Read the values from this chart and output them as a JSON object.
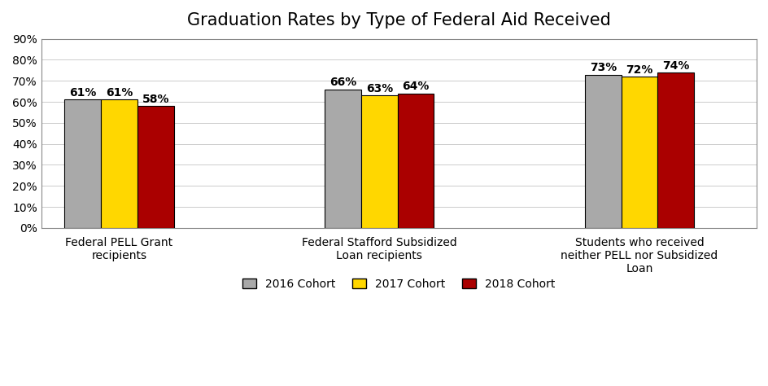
{
  "title": "Graduation Rates by Type of Federal Aid Received",
  "categories": [
    "Federal PELL Grant\nrecipients",
    "Federal Stafford Subsidized\nLoan recipients",
    "Students who received\nneither PELL nor Subsidized\nLoan"
  ],
  "series": {
    "2016 Cohort": [
      61,
      66,
      73
    ],
    "2017 Cohort": [
      61,
      63,
      72
    ],
    "2018 Cohort": [
      58,
      64,
      74
    ]
  },
  "colors": {
    "2016 Cohort": "#A9A9A9",
    "2017 Cohort": "#FFD700",
    "2018 Cohort": "#AA0000"
  },
  "ylim": [
    0,
    90
  ],
  "yticks": [
    0,
    10,
    20,
    30,
    40,
    50,
    60,
    70,
    80,
    90
  ],
  "ytick_labels": [
    "0%",
    "10%",
    "20%",
    "30%",
    "40%",
    "50%",
    "60%",
    "70%",
    "80%",
    "90%"
  ],
  "bar_width": 0.28,
  "group_positions": [
    0.5,
    2.5,
    4.5
  ],
  "edge_color": "#000000",
  "background_color": "#FFFFFF",
  "title_fontsize": 15,
  "label_fontsize": 10,
  "tick_fontsize": 10,
  "legend_fontsize": 10,
  "bar_label_fontsize": 10,
  "bar_label_fontweight": "bold"
}
